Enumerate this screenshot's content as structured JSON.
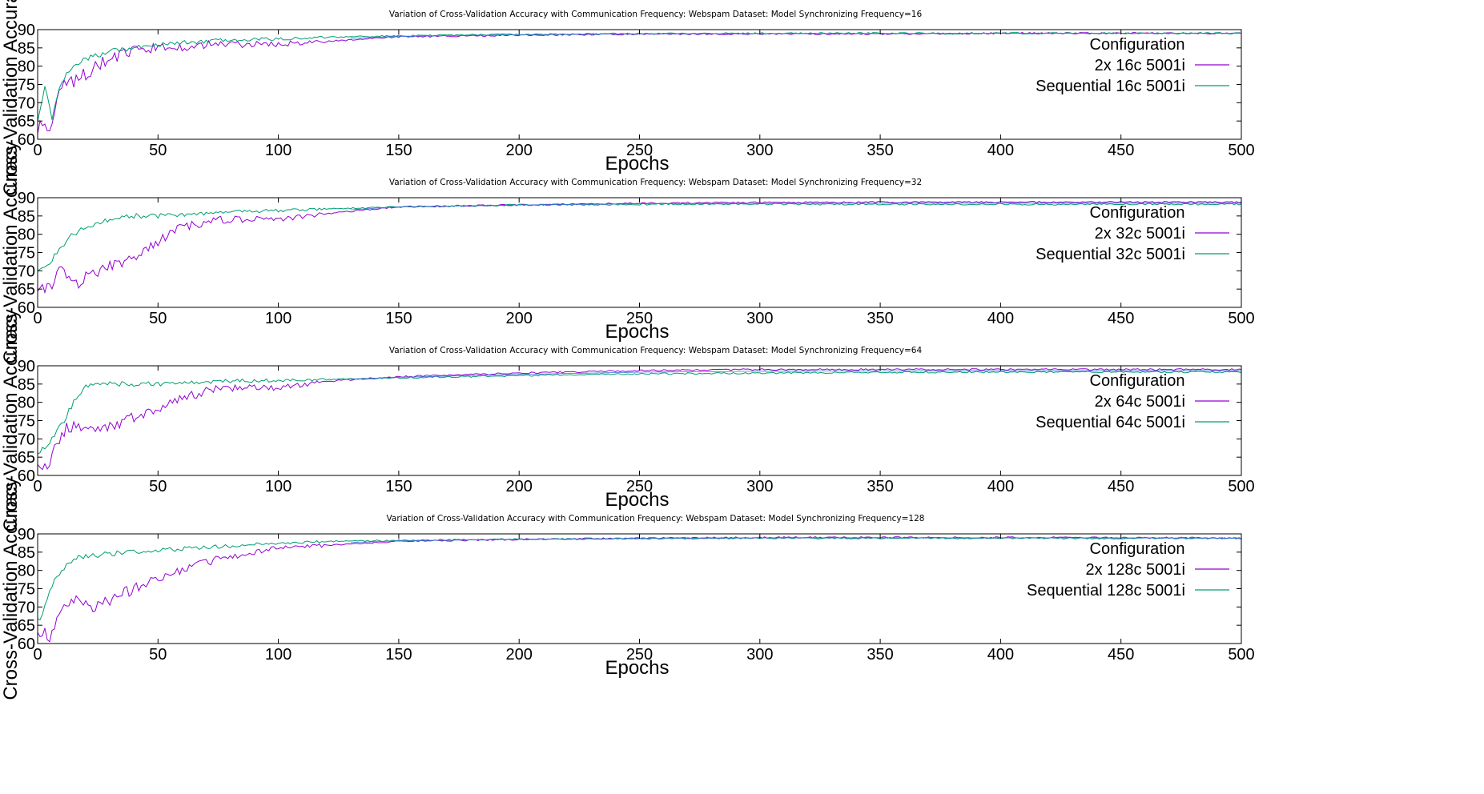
{
  "chart_data": [
    {
      "type": "line",
      "title": "Variation of Cross-Validation Accuracy with Communication Frequency: Webspam Dataset: Model Synchronizing Frequency=16",
      "xlabel": "Epochs",
      "ylabel": "Cross-Validation Accuracy",
      "xlim": [
        0,
        500
      ],
      "ylim": [
        60,
        90
      ],
      "xticks": [
        "0",
        "50",
        "100",
        "150",
        "200",
        "250",
        "300",
        "350",
        "400",
        "450",
        "500"
      ],
      "yticks": [
        "60",
        "65",
        "70",
        "75",
        "80",
        "85",
        "90"
      ],
      "grid": false,
      "legend_title": "Configuration",
      "legend_position": "top-right",
      "series": [
        {
          "name": "2x 16c 5001i",
          "color": "#9400d3",
          "x": [
            0,
            5,
            10,
            15,
            20,
            30,
            40,
            50,
            75,
            100,
            125,
            150,
            200,
            250,
            300,
            350,
            400,
            450,
            500
          ],
          "y": [
            63,
            64,
            74,
            76,
            78,
            82,
            84,
            85,
            86,
            86,
            87,
            88,
            88.5,
            88.8,
            88.8,
            88.8,
            89,
            89,
            89
          ]
        },
        {
          "name": "Sequential 16c 5001i",
          "color": "#009e73",
          "x": [
            0,
            3,
            6,
            10,
            15,
            20,
            30,
            40,
            50,
            75,
            100,
            125,
            150,
            200,
            250,
            300,
            350,
            400,
            450,
            500
          ],
          "y": [
            65,
            75,
            66,
            76,
            80,
            82,
            84,
            85,
            86,
            87,
            87.5,
            88,
            88.3,
            88.7,
            88.9,
            89,
            89,
            89,
            89,
            89
          ]
        }
      ]
    },
    {
      "type": "line",
      "title": "Variation of Cross-Validation Accuracy with Communication Frequency: Webspam Dataset: Model Synchronizing Frequency=32",
      "xlabel": "Epochs",
      "ylabel": "Cross-Validation Accuracy",
      "xlim": [
        0,
        500
      ],
      "ylim": [
        60,
        90
      ],
      "xticks": [
        "0",
        "50",
        "100",
        "150",
        "200",
        "250",
        "300",
        "350",
        "400",
        "450",
        "500"
      ],
      "yticks": [
        "60",
        "65",
        "70",
        "75",
        "80",
        "85",
        "90"
      ],
      "grid": false,
      "legend_title": "Configuration",
      "legend_position": "top-right",
      "series": [
        {
          "name": "2x 32c 5001i",
          "color": "#9400d3",
          "x": [
            0,
            5,
            10,
            15,
            20,
            25,
            30,
            40,
            50,
            60,
            75,
            100,
            125,
            150,
            200,
            250,
            300,
            350,
            400,
            450,
            500
          ],
          "y": [
            65,
            66,
            71,
            66,
            68,
            70,
            71,
            74,
            78,
            82,
            84,
            84,
            86,
            87.5,
            88,
            88.5,
            88.7,
            88.8,
            88.8,
            88.8,
            88.8
          ]
        },
        {
          "name": "Sequential 32c 5001i",
          "color": "#009e73",
          "x": [
            0,
            5,
            10,
            15,
            20,
            30,
            40,
            50,
            75,
            100,
            125,
            150,
            200,
            250,
            300,
            350,
            400,
            450,
            500
          ],
          "y": [
            70,
            72,
            77,
            80,
            82,
            84,
            85,
            85,
            86,
            86.5,
            87,
            87.5,
            88,
            88.2,
            88.2,
            88.2,
            88.2,
            88.2,
            88.2
          ]
        }
      ]
    },
    {
      "type": "line",
      "title": "Variation of Cross-Validation Accuracy with Communication Frequency: Webspam Dataset: Model Synchronizing Frequency=64",
      "xlabel": "Epochs",
      "ylabel": "Cross-Validation Accuracy",
      "xlim": [
        0,
        500
      ],
      "ylim": [
        60,
        90
      ],
      "xticks": [
        "0",
        "50",
        "100",
        "150",
        "200",
        "250",
        "300",
        "350",
        "400",
        "450",
        "500"
      ],
      "yticks": [
        "60",
        "65",
        "70",
        "75",
        "80",
        "85",
        "90"
      ],
      "grid": false,
      "legend_title": "Configuration",
      "legend_position": "top-right",
      "series": [
        {
          "name": "2x 64c 5001i",
          "color": "#9400d3",
          "x": [
            0,
            5,
            10,
            15,
            20,
            25,
            30,
            40,
            50,
            60,
            75,
            100,
            125,
            150,
            200,
            250,
            300,
            350,
            400,
            450,
            500
          ],
          "y": [
            64,
            63,
            72,
            74,
            72,
            72,
            73,
            76,
            78,
            81,
            84,
            84,
            86,
            87,
            88,
            88.7,
            89,
            89,
            89,
            89,
            89
          ]
        },
        {
          "name": "Sequential 64c 5001i",
          "color": "#009e73",
          "x": [
            0,
            5,
            10,
            15,
            20,
            25,
            30,
            40,
            50,
            75,
            100,
            125,
            150,
            200,
            250,
            300,
            350,
            400,
            450,
            500
          ],
          "y": [
            66,
            69,
            74,
            80,
            84,
            85,
            85,
            85,
            85,
            85.8,
            86,
            86.3,
            86.7,
            87.3,
            87.8,
            88,
            88.2,
            88.3,
            88.3,
            88.3
          ]
        }
      ]
    },
    {
      "type": "line",
      "title": "Variation of Cross-Validation Accuracy with Communication Frequency: Webspam Dataset: Model Synchronizing Frequency=128",
      "xlabel": "Epochs",
      "ylabel": "Cross-Validation Accuracy",
      "xlim": [
        0,
        500
      ],
      "ylim": [
        60,
        90
      ],
      "xticks": [
        "0",
        "50",
        "100",
        "150",
        "200",
        "250",
        "300",
        "350",
        "400",
        "450",
        "500"
      ],
      "yticks": [
        "60",
        "65",
        "70",
        "75",
        "80",
        "85",
        "90"
      ],
      "grid": false,
      "legend_title": "Configuration",
      "legend_position": "top-right",
      "series": [
        {
          "name": "2x 128c 5001i",
          "color": "#9400d3",
          "x": [
            0,
            5,
            10,
            15,
            20,
            25,
            30,
            40,
            50,
            60,
            75,
            100,
            125,
            150,
            200,
            250,
            300,
            350,
            400,
            450,
            500
          ],
          "y": [
            63,
            62,
            68,
            72,
            71,
            70,
            72,
            75,
            78,
            80,
            83,
            86,
            87,
            88,
            88.5,
            88.8,
            89,
            89,
            89,
            89,
            88.8
          ]
        },
        {
          "name": "Sequential 128c 5001i",
          "color": "#009e73",
          "x": [
            0,
            3,
            6,
            10,
            15,
            20,
            30,
            40,
            50,
            75,
            100,
            125,
            150,
            200,
            250,
            300,
            350,
            400,
            450,
            500
          ],
          "y": [
            66,
            70,
            76,
            80,
            83,
            84,
            84.5,
            85,
            85.5,
            86.5,
            87.5,
            88,
            88.2,
            88.5,
            88.7,
            88.8,
            88.8,
            88.8,
            88.8,
            88.8
          ]
        }
      ]
    }
  ]
}
